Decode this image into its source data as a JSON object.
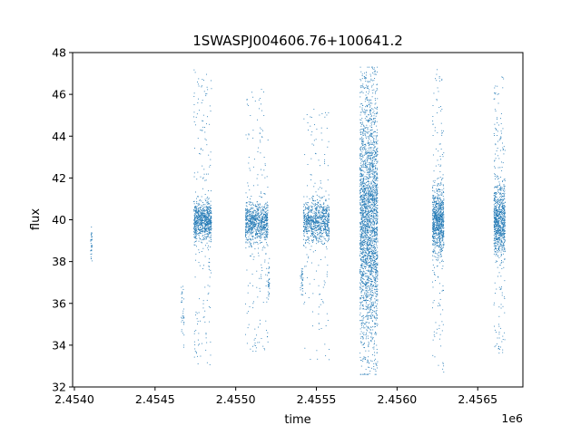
{
  "chart_data": {
    "type": "scatter",
    "title": "1SWASPJ004606.76+100641.2",
    "xlabel": "time",
    "ylabel": "flux",
    "x_offset_label": "1e6",
    "xlim": [
      2453989,
      2456780
    ],
    "ylim": [
      32,
      48
    ],
    "x_tick_values": [
      2454000,
      2454500,
      2455000,
      2455500,
      2456000,
      2456500
    ],
    "x_tick_labels": [
      "2.4540",
      "2.4545",
      "2.4550",
      "2.4555",
      "2.4560",
      "2.4565"
    ],
    "y_tick_values": [
      32,
      34,
      36,
      38,
      40,
      42,
      44,
      46,
      48
    ],
    "y_tick_labels": [
      "32",
      "34",
      "36",
      "38",
      "40",
      "42",
      "44",
      "46",
      "48"
    ],
    "marker_color": "#1f77b4",
    "grid": false,
    "clusters": [
      {
        "x_start": 2454100,
        "x_end": 2454110,
        "y_low": 37.7,
        "y_high": 39.9,
        "core_low": 38.2,
        "core_high": 39.4,
        "density": "sparse"
      },
      {
        "x_start": 2454660,
        "x_end": 2454680,
        "y_low": 33.9,
        "y_high": 37.0,
        "core_low": 34.5,
        "core_high": 36.5,
        "density": "sparse"
      },
      {
        "x_start": 2454740,
        "x_end": 2454850,
        "y_low": 33.0,
        "y_high": 47.2,
        "core_low": 39.3,
        "core_high": 40.6,
        "density": "dense"
      },
      {
        "x_start": 2455060,
        "x_end": 2455200,
        "y_low": 33.5,
        "y_high": 46.3,
        "core_low": 39.2,
        "core_high": 40.6,
        "density": "dense"
      },
      {
        "x_start": 2455200,
        "x_end": 2455210,
        "y_low": 35.8,
        "y_high": 38.2,
        "core_low": 36.5,
        "core_high": 37.6,
        "density": "sparse"
      },
      {
        "x_start": 2455400,
        "x_end": 2455420,
        "y_low": 36.0,
        "y_high": 38.0,
        "core_low": 36.5,
        "core_high": 37.6,
        "density": "sparse"
      },
      {
        "x_start": 2455420,
        "x_end": 2455580,
        "y_low": 33.3,
        "y_high": 45.3,
        "core_low": 39.2,
        "core_high": 40.6,
        "density": "dense"
      },
      {
        "x_start": 2455770,
        "x_end": 2455880,
        "y_low": 32.6,
        "y_high": 47.3,
        "core_low": 36.0,
        "core_high": 44.0,
        "density": "very-dense"
      },
      {
        "x_start": 2456220,
        "x_end": 2456290,
        "y_low": 32.7,
        "y_high": 47.2,
        "core_low": 38.8,
        "core_high": 41.0,
        "density": "dense"
      },
      {
        "x_start": 2456600,
        "x_end": 2456670,
        "y_low": 33.3,
        "y_high": 46.9,
        "core_low": 38.8,
        "core_high": 41.2,
        "density": "dense"
      }
    ]
  }
}
